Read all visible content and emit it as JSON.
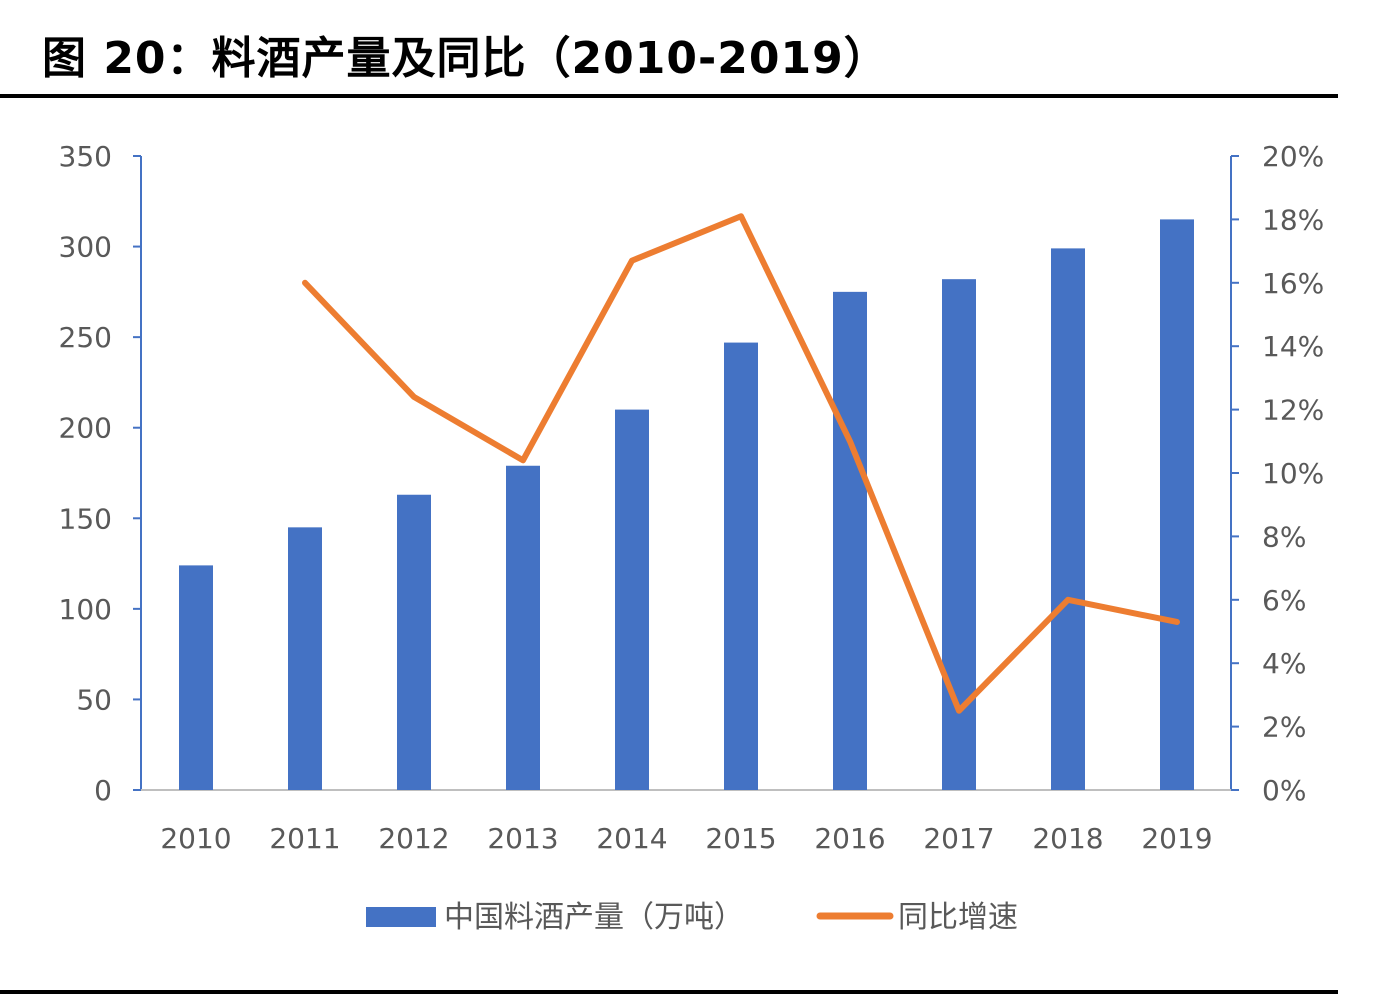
{
  "title": "图 20：料酒产量及同比（2010-2019）",
  "chart_data": {
    "type": "bar+line",
    "categories": [
      "2010",
      "2011",
      "2012",
      "2013",
      "2014",
      "2015",
      "2016",
      "2017",
      "2018",
      "2019"
    ],
    "series": [
      {
        "name": "中国料酒产量（万吨）",
        "type": "bar",
        "axis": "left",
        "color": "#4472C4",
        "values": [
          124,
          145,
          163,
          179,
          210,
          247,
          275,
          282,
          299,
          315
        ]
      },
      {
        "name": "同比增速",
        "type": "line",
        "axis": "right",
        "color": "#ED7D31",
        "values": [
          null,
          16.0,
          12.4,
          10.4,
          16.7,
          18.1,
          11.0,
          2.5,
          6.0,
          5.3
        ]
      }
    ],
    "left_axis": {
      "ylim": [
        0,
        350
      ],
      "ticks": [
        "0",
        "50",
        "100",
        "150",
        "200",
        "250",
        "300",
        "350"
      ]
    },
    "right_axis": {
      "ylim": [
        0,
        20
      ],
      "ticks": [
        "0%",
        "2%",
        "4%",
        "6%",
        "8%",
        "10%",
        "12%",
        "14%",
        "16%",
        "18%",
        "20%"
      ]
    },
    "grid": false,
    "legend": "bottom"
  }
}
